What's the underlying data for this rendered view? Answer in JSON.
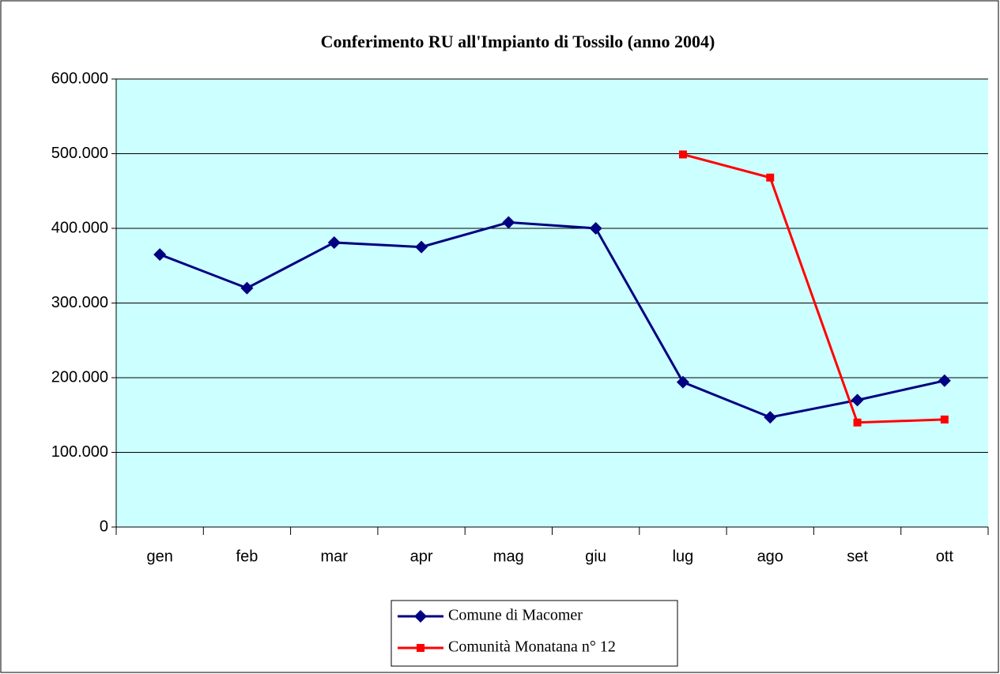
{
  "chart_data": {
    "type": "line",
    "title": "Conferimento RU all'Impianto di Tossilo (anno 2004)",
    "categories": [
      "gen",
      "feb",
      "mar",
      "apr",
      "mag",
      "giu",
      "lug",
      "ago",
      "set",
      "ott"
    ],
    "series": [
      {
        "name": "Comune di Macomer",
        "color": "#000080",
        "marker": "diamond",
        "values": [
          365000,
          320000,
          381000,
          375000,
          408000,
          400000,
          194000,
          147000,
          170000,
          196000
        ]
      },
      {
        "name": "Comunità Monatana n° 12",
        "color": "#ff0000",
        "marker": "square",
        "values": [
          null,
          null,
          null,
          null,
          null,
          null,
          499000,
          468000,
          140000,
          144000
        ]
      }
    ],
    "ylim": [
      0,
      600000
    ],
    "yticks": [
      0,
      {
        "value": 100000,
        "label": "100.000"
      },
      {
        "value": 200000,
        "label": "200.000"
      },
      {
        "value": 300000,
        "label": "300.000"
      },
      {
        "value": 400000,
        "label": "400.000"
      },
      {
        "value": 500000,
        "label": "500.000"
      },
      {
        "value": 600000,
        "label": "600.000"
      }
    ],
    "grid": true,
    "legend": "bottom"
  }
}
